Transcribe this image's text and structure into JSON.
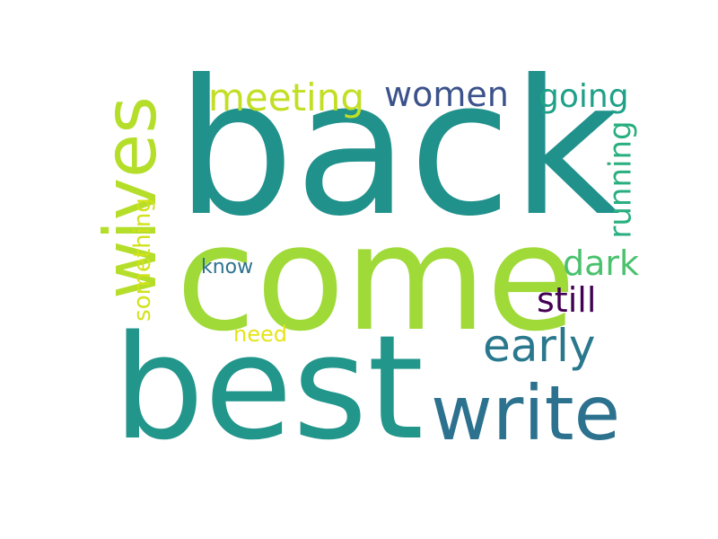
{
  "words": [
    {
      "text": "back",
      "color": "#21918c",
      "orientation": "horizontal"
    },
    {
      "text": "come",
      "color": "#a0da39",
      "orientation": "horizontal"
    },
    {
      "text": "best",
      "color": "#22968b",
      "orientation": "horizontal"
    },
    {
      "text": "write",
      "color": "#2c728e",
      "orientation": "horizontal"
    },
    {
      "text": "wives",
      "color": "#b5de2b",
      "orientation": "vertical"
    },
    {
      "text": "meeting",
      "color": "#c2df23",
      "orientation": "horizontal"
    },
    {
      "text": "women",
      "color": "#3b528b",
      "orientation": "horizontal"
    },
    {
      "text": "going",
      "color": "#1fa187",
      "orientation": "horizontal"
    },
    {
      "text": "running",
      "color": "#29af7f",
      "orientation": "vertical"
    },
    {
      "text": "early",
      "color": "#2a788e",
      "orientation": "horizontal"
    },
    {
      "text": "dark",
      "color": "#4ac16d",
      "orientation": "horizontal"
    },
    {
      "text": "still",
      "color": "#440154",
      "orientation": "horizontal"
    },
    {
      "text": "something",
      "color": "#d2e21b",
      "orientation": "vertical"
    },
    {
      "text": "know",
      "color": "#2c728e",
      "orientation": "horizontal"
    },
    {
      "text": "need",
      "color": "#e5e419",
      "orientation": "horizontal"
    }
  ]
}
